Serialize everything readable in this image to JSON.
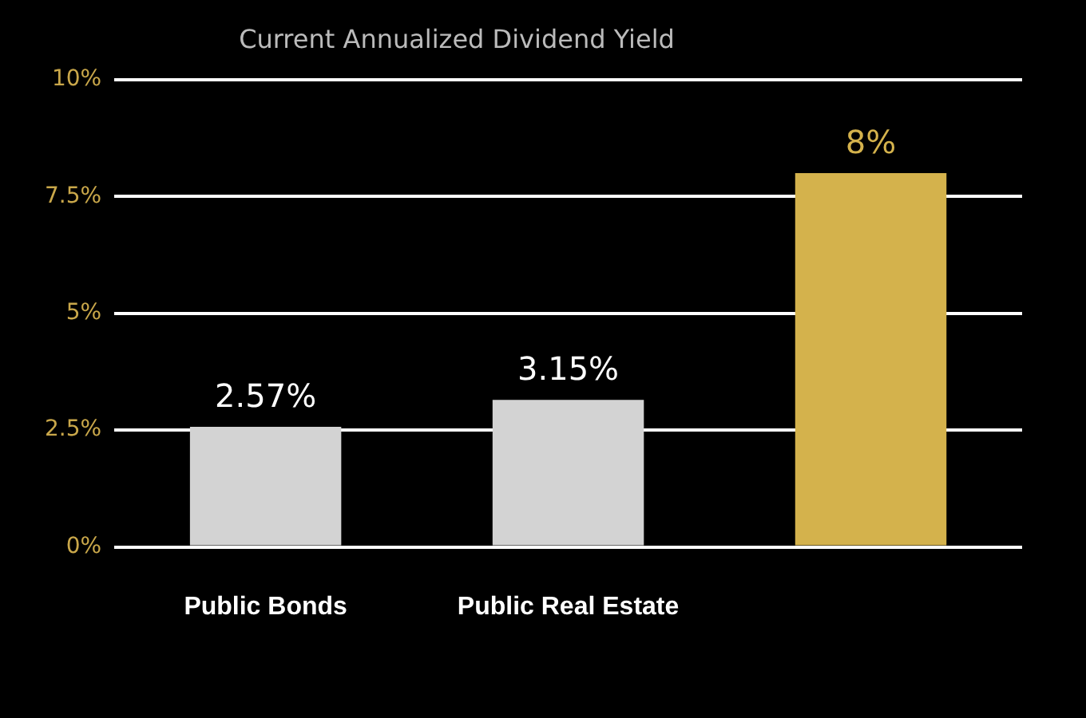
{
  "chart_data": {
    "type": "bar",
    "title": "Current Annualized Dividend Yield",
    "categories": [
      "Public Bonds",
      "Public Real Estate",
      null
    ],
    "values": [
      2.57,
      3.15,
      8
    ],
    "colors": [
      "#d3d3d3",
      "#d3d3d3",
      "#d4b24c"
    ],
    "value_labels": [
      "2.57%",
      "3.15%",
      "8%"
    ],
    "ylim": [
      0,
      10
    ],
    "yticks": [
      {
        "value": 0,
        "label": "0%"
      },
      {
        "value": 2.5,
        "label": "2.5%"
      },
      {
        "value": 5,
        "label": "5%"
      },
      {
        "value": 7.5,
        "label": "7.5%"
      },
      {
        "value": 10,
        "label": "10%"
      }
    ],
    "grid": "y",
    "legend": false
  }
}
